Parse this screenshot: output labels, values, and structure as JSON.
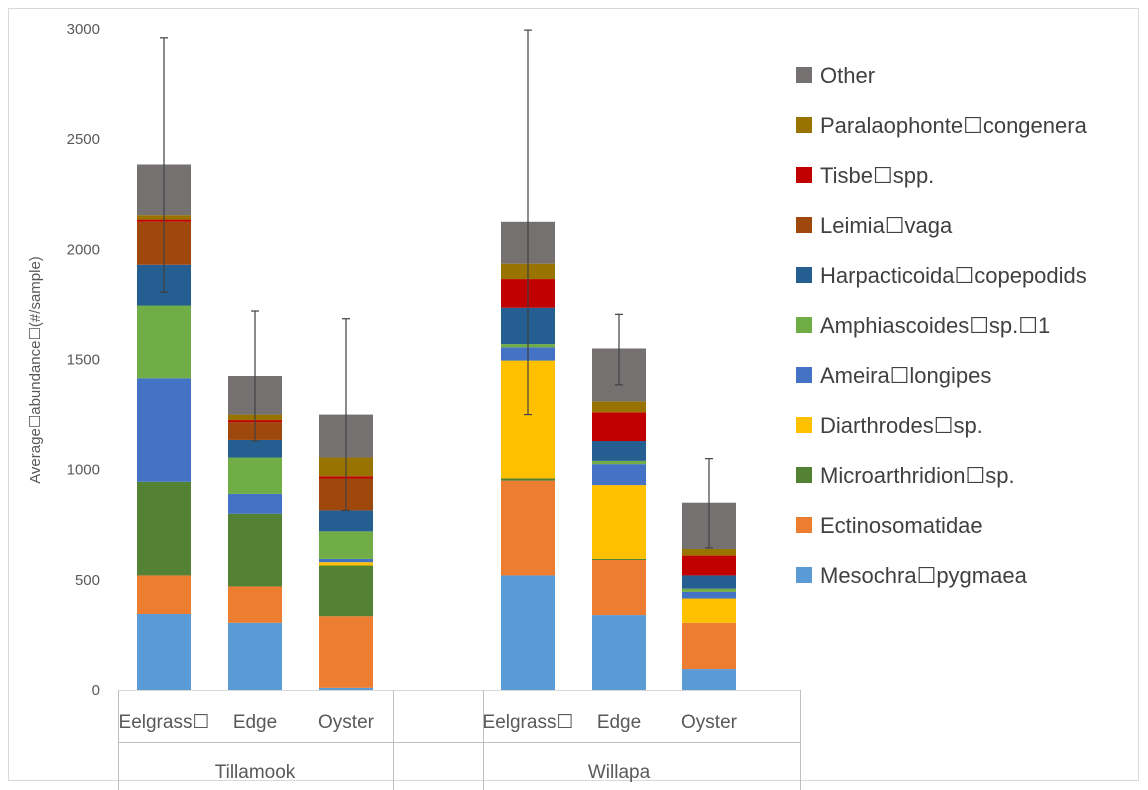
{
  "chart_data": {
    "type": "bar",
    "stacked": true,
    "title": "",
    "xlabel": "",
    "ylabel": "Average☐abundance☐(#/sample)",
    "ylim": [
      0,
      3000
    ],
    "yticks": [
      0,
      500,
      1000,
      1500,
      2000,
      2500,
      3000
    ],
    "grid": false,
    "legend_position": "right",
    "groups": [
      {
        "label": "Tillamook",
        "categories": [
          "Eelgrass☐",
          "Edge",
          "Oyster"
        ]
      },
      {
        "label": "Willapa",
        "categories": [
          "Eelgrass☐",
          "Edge",
          "Oyster"
        ]
      }
    ],
    "series": [
      {
        "name": "Mesochra☐pygmaea",
        "color": "#5b9bd5",
        "values": [
          345,
          305,
          10,
          520,
          340,
          95
        ]
      },
      {
        "name": "Ectinosomatidae",
        "color": "#ed7d31",
        "values": [
          175,
          165,
          325,
          430,
          250,
          210
        ]
      },
      {
        "name": "Microarthridion☐sp.",
        "color": "#548235",
        "values": [
          425,
          330,
          230,
          10,
          5,
          0
        ]
      },
      {
        "name": "Diarthrodes☐sp.",
        "color": "#ffc000",
        "values": [
          0,
          0,
          15,
          535,
          335,
          110
        ]
      },
      {
        "name": "Ameira☐longipes",
        "color": "#4472c4",
        "values": [
          470,
          90,
          15,
          60,
          95,
          30
        ]
      },
      {
        "name": "Amphiascoides☐sp.☐1",
        "color": "#70ad47",
        "values": [
          330,
          165,
          125,
          15,
          15,
          15
        ]
      },
      {
        "name": "Harpacticoida☐copepodids",
        "color": "#255e91",
        "values": [
          185,
          80,
          95,
          165,
          90,
          60
        ]
      },
      {
        "name": "Leimia☐vaga",
        "color": "#9e480e",
        "values": [
          195,
          80,
          145,
          0,
          0,
          0
        ]
      },
      {
        "name": "Tisbe☐spp.",
        "color": "#c00000",
        "values": [
          10,
          10,
          10,
          130,
          130,
          90
        ]
      },
      {
        "name": "Paralaophonte☐congenera",
        "color": "#997300",
        "values": [
          20,
          25,
          85,
          70,
          50,
          30
        ]
      },
      {
        "name": "Other",
        "color": "#767171",
        "values": [
          230,
          175,
          195,
          190,
          240,
          210
        ]
      }
    ],
    "error_bars": {
      "low": [
        1805,
        1130,
        815,
        1250,
        1385,
        645
      ],
      "high": [
        2960,
        1720,
        1685,
        2995,
        1705,
        1050
      ]
    }
  }
}
